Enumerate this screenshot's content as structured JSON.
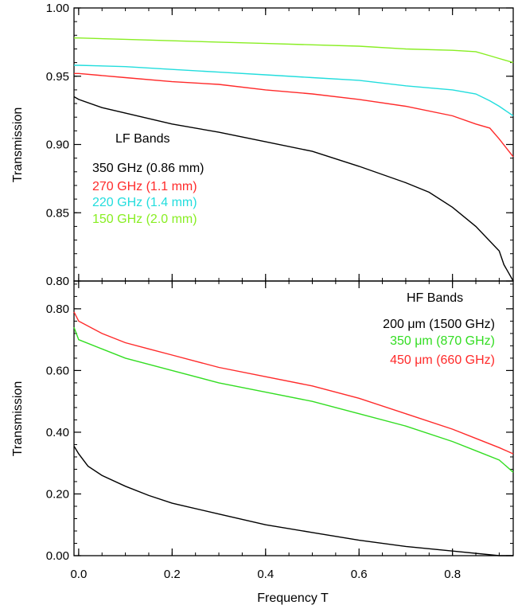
{
  "chart_data": [
    {
      "type": "line",
      "panel": "top",
      "title": "",
      "xlabel": "",
      "ylabel": "Transmission",
      "xlim": [
        -0.01,
        0.93
      ],
      "ylim": [
        0.8,
        1.0
      ],
      "yticks": [
        0.8,
        0.85,
        0.9,
        0.95,
        1.0
      ],
      "ytick_labels": [
        "0.80",
        "0.85",
        "0.90",
        "0.95",
        "1.00"
      ],
      "grid": false,
      "legend_title": "LF Bands",
      "legend_placement": "middle-left",
      "series": [
        {
          "name": "350 GHz (0.86 mm)",
          "color": "#000000",
          "x": [
            -0.01,
            0.0,
            0.05,
            0.1,
            0.2,
            0.3,
            0.4,
            0.5,
            0.6,
            0.7,
            0.75,
            0.8,
            0.85,
            0.9,
            0.91,
            0.93
          ],
          "y": [
            0.935,
            0.933,
            0.927,
            0.923,
            0.915,
            0.909,
            0.902,
            0.895,
            0.884,
            0.872,
            0.865,
            0.854,
            0.84,
            0.822,
            0.812,
            0.8
          ]
        },
        {
          "name": "270 GHz (1.1 mm)",
          "color": "#ff2a2a",
          "x": [
            -0.01,
            0.0,
            0.1,
            0.2,
            0.3,
            0.4,
            0.5,
            0.6,
            0.7,
            0.8,
            0.85,
            0.88,
            0.9,
            0.93
          ],
          "y": [
            0.952,
            0.952,
            0.949,
            0.946,
            0.944,
            0.94,
            0.937,
            0.933,
            0.928,
            0.921,
            0.915,
            0.912,
            0.904,
            0.891
          ]
        },
        {
          "name": "220 GHz (1.4 mm)",
          "color": "#22dddd",
          "x": [
            -0.01,
            0.0,
            0.1,
            0.2,
            0.3,
            0.4,
            0.5,
            0.6,
            0.7,
            0.8,
            0.85,
            0.88,
            0.9,
            0.93
          ],
          "y": [
            0.958,
            0.958,
            0.957,
            0.955,
            0.953,
            0.951,
            0.949,
            0.947,
            0.943,
            0.94,
            0.937,
            0.932,
            0.928,
            0.921
          ]
        },
        {
          "name": "150 GHz (2.0 mm)",
          "color": "#88ee22",
          "x": [
            -0.01,
            0.0,
            0.1,
            0.2,
            0.3,
            0.4,
            0.5,
            0.6,
            0.7,
            0.8,
            0.85,
            0.88,
            0.9,
            0.93
          ],
          "y": [
            0.978,
            0.978,
            0.977,
            0.976,
            0.975,
            0.974,
            0.973,
            0.972,
            0.97,
            0.969,
            0.968,
            0.965,
            0.963,
            0.96
          ]
        }
      ]
    },
    {
      "type": "line",
      "panel": "bottom",
      "title": "",
      "xlabel": "Frequency T",
      "ylabel": "Transmission",
      "xlim": [
        -0.01,
        0.93
      ],
      "ylim": [
        0.0,
        0.89
      ],
      "xticks": [
        0.0,
        0.2,
        0.4,
        0.6,
        0.8
      ],
      "xtick_labels": [
        "0.0",
        "0.2",
        "0.4",
        "0.6",
        "0.8"
      ],
      "yticks": [
        0.0,
        0.2,
        0.4,
        0.6,
        0.8
      ],
      "ytick_labels": [
        "0.00",
        "0.20",
        "0.40",
        "0.60",
        "0.80"
      ],
      "grid": false,
      "legend_title": "HF Bands",
      "legend_placement": "top-right",
      "series": [
        {
          "name": "200 μm (1500 GHz)",
          "color": "#000000",
          "x": [
            -0.01,
            0.0,
            0.02,
            0.05,
            0.1,
            0.15,
            0.2,
            0.3,
            0.4,
            0.5,
            0.6,
            0.7,
            0.8,
            0.9,
            0.93
          ],
          "y": [
            0.355,
            0.33,
            0.29,
            0.26,
            0.225,
            0.195,
            0.17,
            0.135,
            0.1,
            0.075,
            0.05,
            0.03,
            0.015,
            0.0,
            -0.005
          ]
        },
        {
          "name": "350 μm (870 GHz)",
          "color": "#33dd22",
          "x": [
            -0.01,
            0.0,
            0.05,
            0.1,
            0.15,
            0.2,
            0.3,
            0.4,
            0.5,
            0.6,
            0.7,
            0.8,
            0.85,
            0.9,
            0.93
          ],
          "y": [
            0.74,
            0.7,
            0.67,
            0.64,
            0.62,
            0.6,
            0.56,
            0.53,
            0.5,
            0.46,
            0.42,
            0.37,
            0.34,
            0.31,
            0.27
          ]
        },
        {
          "name": "450 μm (660 GHz)",
          "color": "#ff2a2a",
          "x": [
            -0.01,
            0.0,
            0.05,
            0.1,
            0.15,
            0.2,
            0.3,
            0.4,
            0.5,
            0.6,
            0.7,
            0.8,
            0.85,
            0.9,
            0.93
          ],
          "y": [
            0.79,
            0.76,
            0.72,
            0.69,
            0.67,
            0.65,
            0.61,
            0.58,
            0.55,
            0.51,
            0.46,
            0.41,
            0.38,
            0.35,
            0.33
          ]
        }
      ]
    }
  ]
}
